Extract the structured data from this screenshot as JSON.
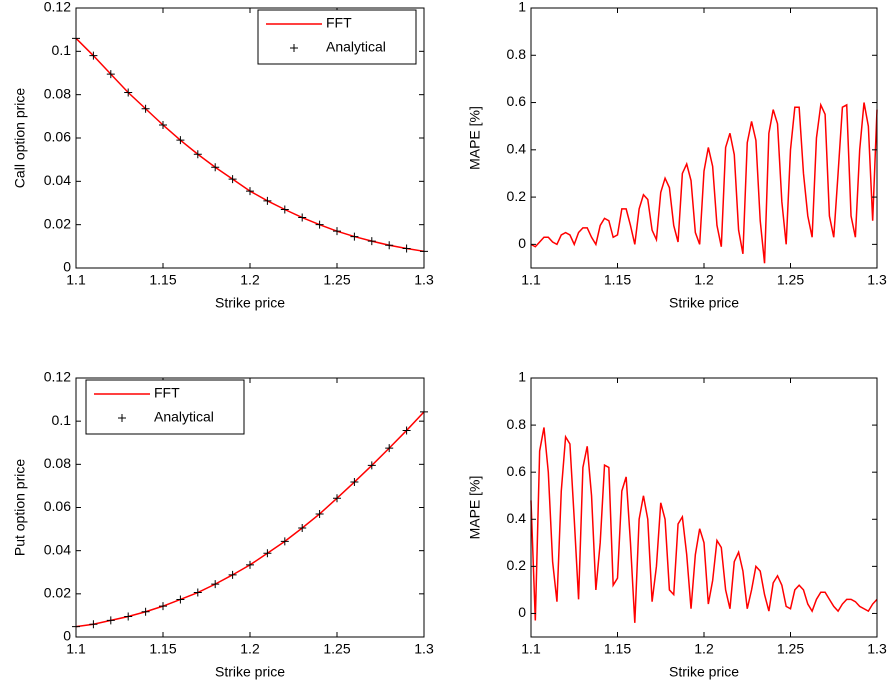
{
  "chart_data": [
    {
      "type": "line",
      "ylabel": "Call option price",
      "xlabel": "Strike price",
      "x": [
        1.1,
        1.11,
        1.12,
        1.13,
        1.14,
        1.15,
        1.16,
        1.17,
        1.18,
        1.19,
        1.2,
        1.21,
        1.22,
        1.23,
        1.24,
        1.25,
        1.26,
        1.27,
        1.28,
        1.29,
        1.3
      ],
      "series": [
        {
          "name": "FFT",
          "color": "#ff0000",
          "marker": "none",
          "values": [
            0.106,
            0.098,
            0.0895,
            0.081,
            0.0735,
            0.066,
            0.059,
            0.0525,
            0.0465,
            0.041,
            0.0355,
            0.031,
            0.027,
            0.0233,
            0.02,
            0.017,
            0.0145,
            0.0124,
            0.0105,
            0.009,
            0.0077
          ]
        },
        {
          "name": "Analytical",
          "color": "#000000",
          "marker": "+",
          "values": [
            0.106,
            0.098,
            0.0895,
            0.081,
            0.0735,
            0.066,
            0.059,
            0.0525,
            0.0465,
            0.041,
            0.0355,
            0.031,
            0.027,
            0.0233,
            0.02,
            0.017,
            0.0145,
            0.0124,
            0.0105,
            0.009,
            0.0077
          ]
        }
      ],
      "xlim": [
        1.1,
        1.3
      ],
      "xticks": [
        1.1,
        1.15,
        1.2,
        1.25,
        1.3
      ],
      "ylim": [
        0,
        0.12
      ],
      "yticks": [
        0,
        0.02,
        0.04,
        0.06,
        0.08,
        0.1,
        0.12
      ],
      "legend": "upper right"
    },
    {
      "type": "line",
      "ylabel": "MAPE [%]",
      "xlabel": "Strike price",
      "x": [
        1.1,
        1.1025,
        1.105,
        1.1075,
        1.11,
        1.1125,
        1.115,
        1.1175,
        1.12,
        1.1225,
        1.125,
        1.1275,
        1.13,
        1.1325,
        1.135,
        1.1375,
        1.14,
        1.1425,
        1.145,
        1.1475,
        1.15,
        1.1525,
        1.155,
        1.1575,
        1.16,
        1.1625,
        1.165,
        1.1675,
        1.17,
        1.1725,
        1.175,
        1.1775,
        1.18,
        1.1825,
        1.185,
        1.1875,
        1.19,
        1.1925,
        1.195,
        1.1975,
        1.2,
        1.2025,
        1.205,
        1.2075,
        1.21,
        1.2125,
        1.215,
        1.2175,
        1.22,
        1.2225,
        1.225,
        1.2275,
        1.23,
        1.2325,
        1.235,
        1.2375,
        1.24,
        1.2425,
        1.245,
        1.2475,
        1.25,
        1.2525,
        1.255,
        1.2575,
        1.26,
        1.2625,
        1.265,
        1.2675,
        1.27,
        1.2725,
        1.275,
        1.2775,
        1.28,
        1.2825,
        1.285,
        1.2875,
        1.29,
        1.2925,
        1.295,
        1.2975,
        1.3
      ],
      "series": [
        {
          "name": "MAPE",
          "color": "#ff0000",
          "marker": "none",
          "values": [
            0.0,
            -0.01,
            0.01,
            0.03,
            0.03,
            0.01,
            0.0,
            0.04,
            0.05,
            0.04,
            0.0,
            0.05,
            0.07,
            0.07,
            0.03,
            0.0,
            0.08,
            0.11,
            0.1,
            0.03,
            0.04,
            0.15,
            0.15,
            0.08,
            0.0,
            0.15,
            0.21,
            0.19,
            0.06,
            0.02,
            0.22,
            0.28,
            0.24,
            0.08,
            0.01,
            0.3,
            0.34,
            0.27,
            0.05,
            0.0,
            0.31,
            0.41,
            0.33,
            0.08,
            -0.01,
            0.41,
            0.47,
            0.38,
            0.06,
            -0.04,
            0.43,
            0.52,
            0.44,
            0.1,
            -0.08,
            0.47,
            0.57,
            0.51,
            0.18,
            0.0,
            0.4,
            0.58,
            0.58,
            0.3,
            0.12,
            0.03,
            0.45,
            0.59,
            0.55,
            0.12,
            0.03,
            0.3,
            0.58,
            0.59,
            0.12,
            0.03,
            0.4,
            0.6,
            0.5,
            0.1,
            0.57
          ]
        }
      ],
      "xlim": [
        1.1,
        1.3
      ],
      "xticks": [
        1.1,
        1.15,
        1.2,
        1.25,
        1.3
      ],
      "ylim": [
        -0.1,
        1
      ],
      "yticks": [
        0,
        0.2,
        0.4,
        0.6,
        0.8,
        1
      ]
    },
    {
      "type": "line",
      "ylabel": "Put option price",
      "xlabel": "Strike price",
      "x": [
        1.1,
        1.11,
        1.12,
        1.13,
        1.14,
        1.15,
        1.16,
        1.17,
        1.18,
        1.19,
        1.2,
        1.21,
        1.22,
        1.23,
        1.24,
        1.25,
        1.26,
        1.27,
        1.28,
        1.29,
        1.3
      ],
      "series": [
        {
          "name": "FFT",
          "color": "#ff0000",
          "marker": "none",
          "values": [
            0.0048,
            0.0059,
            0.0077,
            0.0095,
            0.0117,
            0.0143,
            0.0174,
            0.0206,
            0.0245,
            0.0288,
            0.0334,
            0.0388,
            0.0443,
            0.0505,
            0.057,
            0.0643,
            0.0718,
            0.0795,
            0.0875,
            0.0957,
            0.1043
          ]
        },
        {
          "name": "Analytical",
          "color": "#000000",
          "marker": "+",
          "values": [
            0.0048,
            0.0059,
            0.0077,
            0.0095,
            0.0117,
            0.0143,
            0.0174,
            0.0206,
            0.0245,
            0.0288,
            0.0334,
            0.0388,
            0.0443,
            0.0505,
            0.057,
            0.0643,
            0.0718,
            0.0795,
            0.0875,
            0.0957,
            0.1043
          ]
        }
      ],
      "xlim": [
        1.1,
        1.3
      ],
      "xticks": [
        1.1,
        1.15,
        1.2,
        1.25,
        1.3
      ],
      "ylim": [
        0,
        0.12
      ],
      "yticks": [
        0,
        0.02,
        0.04,
        0.06,
        0.08,
        0.1,
        0.12
      ],
      "legend": "upper left"
    },
    {
      "type": "line",
      "ylabel": "MAPE [%]",
      "xlabel": "Strike price",
      "x": [
        1.1,
        1.1025,
        1.105,
        1.1075,
        1.11,
        1.1125,
        1.115,
        1.1175,
        1.12,
        1.1225,
        1.125,
        1.1275,
        1.13,
        1.1325,
        1.135,
        1.1375,
        1.14,
        1.1425,
        1.145,
        1.1475,
        1.15,
        1.1525,
        1.155,
        1.1575,
        1.16,
        1.1625,
        1.165,
        1.1675,
        1.17,
        1.1725,
        1.175,
        1.1775,
        1.18,
        1.1825,
        1.185,
        1.1875,
        1.19,
        1.1925,
        1.195,
        1.1975,
        1.2,
        1.2025,
        1.205,
        1.2075,
        1.21,
        1.2125,
        1.215,
        1.2175,
        1.22,
        1.2225,
        1.225,
        1.2275,
        1.23,
        1.2325,
        1.235,
        1.2375,
        1.24,
        1.2425,
        1.245,
        1.2475,
        1.25,
        1.2525,
        1.255,
        1.2575,
        1.26,
        1.2625,
        1.265,
        1.2675,
        1.27,
        1.2725,
        1.275,
        1.2775,
        1.28,
        1.2825,
        1.285,
        1.2875,
        1.29,
        1.2925,
        1.295,
        1.2975,
        1.3
      ],
      "series": [
        {
          "name": "MAPE",
          "color": "#ff0000",
          "marker": "none",
          "values": [
            0.48,
            -0.03,
            0.69,
            0.79,
            0.6,
            0.22,
            0.05,
            0.52,
            0.75,
            0.72,
            0.4,
            0.06,
            0.62,
            0.71,
            0.5,
            0.1,
            0.3,
            0.63,
            0.62,
            0.12,
            0.15,
            0.52,
            0.58,
            0.3,
            -0.04,
            0.4,
            0.5,
            0.4,
            0.05,
            0.2,
            0.47,
            0.4,
            0.1,
            0.08,
            0.38,
            0.41,
            0.25,
            0.02,
            0.25,
            0.36,
            0.3,
            0.04,
            0.14,
            0.31,
            0.28,
            0.1,
            0.02,
            0.22,
            0.26,
            0.18,
            0.02,
            0.1,
            0.2,
            0.18,
            0.08,
            0.01,
            0.13,
            0.16,
            0.12,
            0.03,
            0.02,
            0.1,
            0.12,
            0.1,
            0.04,
            0.01,
            0.06,
            0.09,
            0.09,
            0.06,
            0.03,
            0.01,
            0.04,
            0.06,
            0.06,
            0.05,
            0.03,
            0.02,
            0.01,
            0.04,
            0.06
          ]
        }
      ],
      "xlim": [
        1.1,
        1.3
      ],
      "xticks": [
        1.1,
        1.15,
        1.2,
        1.25,
        1.3
      ],
      "ylim": [
        -0.1,
        1
      ],
      "yticks": [
        0,
        0.2,
        0.4,
        0.6,
        0.8,
        1
      ]
    }
  ]
}
